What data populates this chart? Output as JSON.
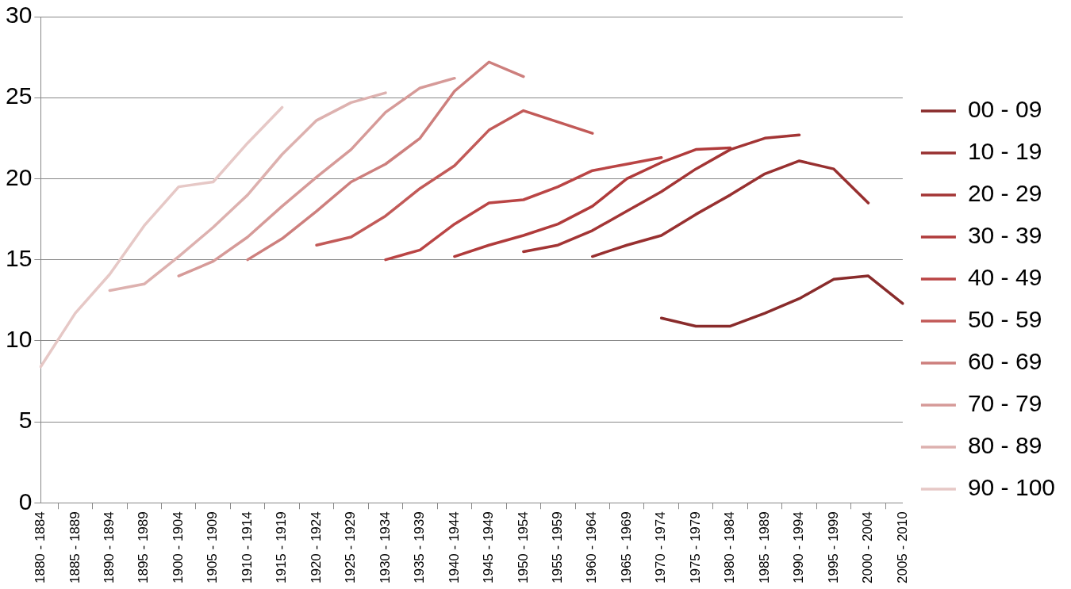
{
  "chart_data": {
    "type": "line",
    "categories": [
      "1880 - 1884",
      "1885 - 1889",
      "1890 - 1894",
      "1895 - 1989",
      "1900 - 1904",
      "1905 - 1909",
      "1910 - 1914",
      "1915 - 1919",
      "1920 - 1924",
      "1925 - 1929",
      "1930 - 1934",
      "1935 - 1939",
      "1940 - 1944",
      "1945 - 1949",
      "1950 - 1954",
      "1955 - 1959",
      "1960 - 1964",
      "1965 - 1969",
      "1970 - 1974",
      "1975 - 1979",
      "1980 - 1984",
      "1985 - 1989",
      "1990 - 1994",
      "1995 - 1999",
      "2000 - 2004",
      "2005 - 2010"
    ],
    "series": [
      {
        "name": "00 - 09",
        "color": "#892b2b",
        "values": [
          null,
          null,
          null,
          null,
          null,
          null,
          null,
          null,
          null,
          null,
          null,
          null,
          null,
          null,
          null,
          null,
          null,
          null,
          11.4,
          10.9,
          10.9,
          11.7,
          12.6,
          13.8,
          14.0,
          12.3
        ]
      },
      {
        "name": "10 - 19",
        "color": "#983030",
        "values": [
          null,
          null,
          null,
          null,
          null,
          null,
          null,
          null,
          null,
          null,
          null,
          null,
          null,
          null,
          null,
          null,
          15.2,
          15.9,
          16.5,
          17.8,
          19.0,
          20.3,
          21.1,
          20.6,
          18.5,
          null
        ]
      },
      {
        "name": "20 - 29",
        "color": "#a33535",
        "values": [
          null,
          null,
          null,
          null,
          null,
          null,
          null,
          null,
          null,
          null,
          null,
          null,
          null,
          null,
          15.5,
          15.9,
          16.8,
          18.0,
          19.2,
          20.6,
          21.8,
          22.5,
          22.7,
          null,
          null,
          null
        ]
      },
      {
        "name": "30 - 39",
        "color": "#b03b3b",
        "values": [
          null,
          null,
          null,
          null,
          null,
          null,
          null,
          null,
          null,
          null,
          null,
          null,
          15.2,
          15.9,
          16.5,
          17.2,
          18.3,
          20.0,
          21.0,
          21.8,
          21.9,
          null,
          null,
          null,
          null,
          null
        ]
      },
      {
        "name": "40 - 49",
        "color": "#ba4545",
        "values": [
          null,
          null,
          null,
          null,
          null,
          null,
          null,
          null,
          null,
          null,
          15.0,
          15.6,
          17.2,
          18.5,
          18.7,
          19.5,
          20.5,
          20.9,
          21.3,
          null,
          null,
          null,
          null,
          null,
          null,
          null
        ]
      },
      {
        "name": "50 - 59",
        "color": "#c25a58",
        "values": [
          null,
          null,
          null,
          null,
          null,
          null,
          null,
          null,
          15.9,
          16.4,
          17.7,
          19.4,
          20.8,
          23.0,
          24.2,
          23.5,
          22.8,
          null,
          null,
          null,
          null,
          null,
          null,
          null,
          null,
          null
        ]
      },
      {
        "name": "60 - 69",
        "color": "#cd7f7d",
        "values": [
          null,
          null,
          null,
          null,
          null,
          null,
          15.0,
          16.3,
          18.0,
          19.8,
          20.9,
          22.5,
          25.4,
          27.2,
          26.3,
          null,
          null,
          null,
          null,
          null,
          null,
          null,
          null,
          null,
          null,
          null
        ]
      },
      {
        "name": "70 - 79",
        "color": "#d69a98",
        "values": [
          null,
          null,
          null,
          null,
          14.0,
          14.9,
          16.4,
          18.3,
          20.1,
          21.8,
          24.1,
          25.6,
          26.2,
          null,
          null,
          null,
          null,
          null,
          null,
          null,
          null,
          null,
          null,
          null,
          null,
          null
        ]
      },
      {
        "name": "80 - 89",
        "color": "#ddb1af",
        "values": [
          null,
          null,
          13.1,
          13.5,
          15.2,
          17.0,
          19.0,
          21.5,
          23.6,
          24.7,
          25.3,
          null,
          null,
          null,
          null,
          null,
          null,
          null,
          null,
          null,
          null,
          null,
          null,
          null,
          null,
          null
        ]
      },
      {
        "name": "90 - 100",
        "color": "#e6c8c6",
        "values": [
          8.4,
          11.7,
          14.1,
          17.1,
          19.5,
          19.8,
          22.2,
          24.4,
          null,
          null,
          null,
          null,
          null,
          null,
          null,
          null,
          null,
          null,
          null,
          null,
          null,
          null,
          null,
          null,
          null,
          null
        ]
      }
    ],
    "ylim": [
      0,
      30
    ],
    "yticks": [
      0,
      5,
      10,
      15,
      20,
      25,
      30
    ],
    "grid": "y",
    "legend": "right",
    "marker": "none",
    "line_style": "solid"
  }
}
